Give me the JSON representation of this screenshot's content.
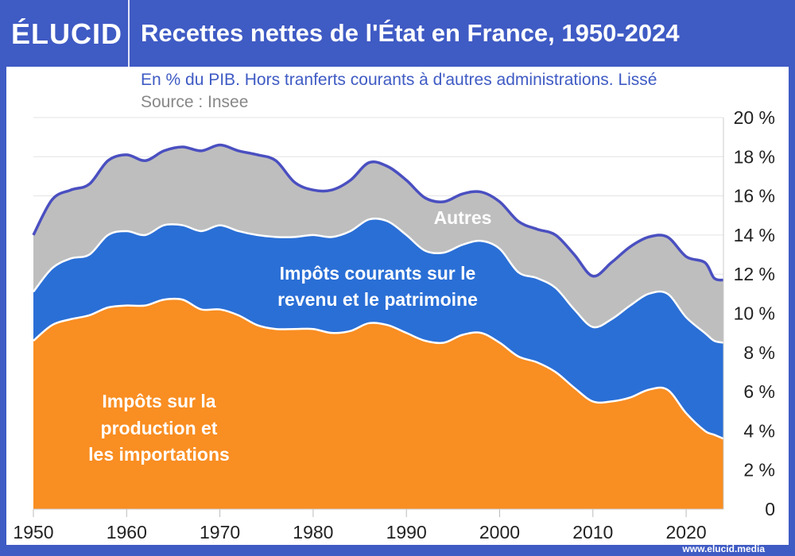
{
  "header": {
    "logo": "ÉLUCID",
    "title": "Recettes nettes de l'État en France, 1950-2024"
  },
  "subtitle": "En % du PIB. Hors tranferts courants à d'autres administrations. Lissé",
  "source": "Source : Insee",
  "footer": "www.elucid.media",
  "colors": {
    "frame": "#3f5bc4",
    "orange": "#f98e22",
    "blue": "#2a6fd6",
    "grey": "#bebebe",
    "total_line": "#4a4fc0"
  },
  "chart_data": {
    "type": "area",
    "stacked": true,
    "xlim": [
      1950,
      2024
    ],
    "ylim": [
      0,
      20
    ],
    "x_ticks": [
      "1950",
      "1960",
      "1970",
      "1980",
      "1990",
      "2000",
      "2010",
      "2020"
    ],
    "y_ticks": [
      "0",
      "2 %",
      "4 %",
      "6 %",
      "8 %",
      "10 %",
      "12 %",
      "14 %",
      "16 %",
      "18 %",
      "20 %"
    ],
    "y_axis_side": "right",
    "grid": true,
    "x": [
      1950,
      1952,
      1954,
      1956,
      1958,
      1960,
      1962,
      1964,
      1966,
      1968,
      1970,
      1972,
      1974,
      1976,
      1978,
      1980,
      1982,
      1984,
      1986,
      1988,
      1990,
      1992,
      1994,
      1996,
      1998,
      2000,
      2002,
      2004,
      2006,
      2008,
      2010,
      2012,
      2014,
      2016,
      2018,
      2020,
      2022,
      2023,
      2024
    ],
    "series": [
      {
        "name": "Impôts sur la production et les importations",
        "color": "#f98e22",
        "values": [
          8.6,
          9.4,
          9.7,
          9.9,
          10.3,
          10.4,
          10.4,
          10.7,
          10.7,
          10.2,
          10.2,
          9.9,
          9.4,
          9.2,
          9.2,
          9.2,
          9.0,
          9.1,
          9.5,
          9.4,
          9.0,
          8.6,
          8.5,
          8.9,
          9.0,
          8.5,
          7.8,
          7.5,
          7.0,
          6.2,
          5.5,
          5.5,
          5.7,
          6.1,
          6.1,
          4.9,
          4.0,
          3.8,
          3.6
        ]
      },
      {
        "name": "Impôts courants sur le revenu et le patrimoine",
        "color": "#2a6fd6",
        "values": [
          2.5,
          2.9,
          3.1,
          3.1,
          3.7,
          3.8,
          3.6,
          3.8,
          3.8,
          4.0,
          4.3,
          4.3,
          4.6,
          4.7,
          4.7,
          4.8,
          4.9,
          5.1,
          5.3,
          5.3,
          5.0,
          4.6,
          4.6,
          4.6,
          4.7,
          4.8,
          4.3,
          4.3,
          4.3,
          4.0,
          3.8,
          4.2,
          4.7,
          4.9,
          4.9,
          4.9,
          5.0,
          4.8,
          4.9
        ]
      },
      {
        "name": "Autres",
        "color": "#bebebe",
        "values": [
          2.9,
          3.5,
          3.5,
          3.6,
          3.8,
          3.9,
          3.8,
          3.8,
          4.0,
          4.1,
          4.1,
          4.1,
          4.1,
          3.9,
          2.8,
          2.3,
          2.4,
          2.6,
          2.9,
          2.8,
          2.8,
          2.7,
          2.6,
          2.6,
          2.5,
          2.4,
          2.6,
          2.5,
          2.7,
          2.8,
          2.6,
          2.9,
          3.0,
          2.9,
          2.9,
          3.1,
          3.6,
          3.2,
          3.2
        ]
      }
    ],
    "annotations": [
      "Autres",
      "Impôts courants sur le",
      "revenu et le patrimoine",
      "Impôts sur la",
      "production et",
      "les importations"
    ]
  }
}
